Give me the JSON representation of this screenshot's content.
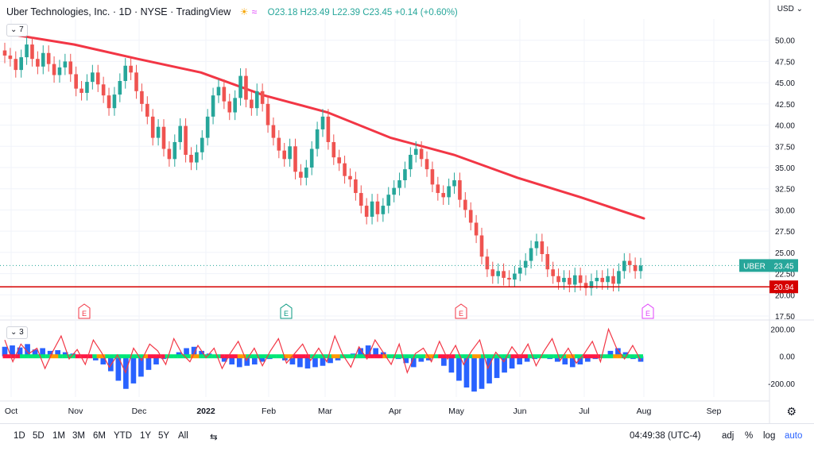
{
  "header": {
    "title": "Uber Technologies, Inc. · 1D · NYSE · TradingView",
    "ohlc": "O23.18 H23.49 L22.39 C23.45 +0.14 (+0.60%)",
    "currency": "USD",
    "ma_tag": "7",
    "osc_tag": "3"
  },
  "toolbar": {
    "timeframes": [
      "1D",
      "5D",
      "1M",
      "3M",
      "6M",
      "YTD",
      "1Y",
      "5Y",
      "All"
    ],
    "time": "04:49:38 (UTC-4)",
    "adj": "adj",
    "pct": "%",
    "log": "log",
    "auto": "auto"
  },
  "colors": {
    "up": "#26a69a",
    "down": "#ef5350",
    "ma": "#f23645",
    "support": "#d50000",
    "osc_bar": "#2962ff",
    "osc_line": "#f23645"
  },
  "chart_data": [
    {
      "type": "candlestick",
      "ticker": "UBER",
      "xlabels": [
        "Oct",
        "Nov",
        "Dec",
        "2022",
        "Feb",
        "Mar",
        "Apr",
        "May",
        "Jun",
        "Jul",
        "Aug",
        "Sep"
      ],
      "ylim": [
        17.5,
        52.5
      ],
      "yticks": [
        17.5,
        20,
        22.5,
        25,
        27.5,
        30,
        32.5,
        35,
        37.5,
        40,
        42.5,
        45,
        47.5,
        50
      ],
      "last_price": 23.45,
      "last_label": "UBER",
      "support_line": 20.94,
      "moving_average": {
        "x_months": [
          "Oct",
          "Nov",
          "Dec",
          "2022",
          "Feb",
          "Mar",
          "Apr",
          "May",
          "Jun",
          "Jul",
          "Aug"
        ],
        "values": [
          50.7,
          49.5,
          47.8,
          46.2,
          43.5,
          41.5,
          38.5,
          36.5,
          33.8,
          31.5,
          29.0
        ]
      },
      "closes": [
        48.2,
        47.8,
        46.5,
        48.0,
        49.5,
        47.8,
        46.9,
        48.5,
        47.2,
        45.9,
        46.8,
        47.5,
        46.0,
        44.3,
        43.8,
        45.1,
        46.2,
        44.8,
        43.5,
        42.0,
        43.6,
        45.2,
        47.0,
        46.2,
        44.0,
        42.5,
        41.0,
        38.5,
        39.8,
        37.2,
        36.0,
        38.0,
        39.9,
        36.5,
        35.6,
        36.8,
        38.5,
        41.0,
        43.5,
        44.5,
        42.8,
        41.5,
        43.2,
        45.8,
        43.0,
        42.0,
        44.0,
        42.5,
        40.0,
        38.5,
        37.0,
        36.0,
        37.5,
        34.5,
        33.8,
        35.0,
        37.2,
        39.5,
        41.0,
        38.0,
        36.2,
        35.5,
        34.0,
        33.6,
        32.0,
        30.5,
        29.2,
        31.0,
        29.5,
        30.5,
        31.8,
        32.6,
        33.5,
        34.8,
        36.5,
        37.2,
        36.0,
        34.8,
        33.0,
        32.0,
        31.5,
        32.8,
        33.5,
        31.2,
        30.0,
        28.5,
        27.0,
        24.5,
        23.0,
        22.2,
        22.8,
        22.0,
        21.8,
        22.5,
        23.2,
        24.0,
        25.5,
        26.3,
        24.8,
        23.0,
        22.2,
        21.5,
        22.0,
        21.2,
        22.3,
        21.4,
        20.8,
        21.6,
        22.0,
        21.5,
        22.2,
        21.3,
        22.8,
        24.0,
        23.5,
        22.8,
        23.45
      ],
      "earnings_markers": [
        "Nov",
        "Feb",
        "May",
        "Aug"
      ]
    },
    {
      "type": "oscillator",
      "ylim": [
        -300,
        250
      ],
      "yticks": [
        200,
        0,
        -200
      ],
      "histogram": [
        70,
        80,
        65,
        90,
        50,
        60,
        40,
        45,
        30,
        20,
        10,
        -5,
        -30,
        -60,
        -110,
        -180,
        -240,
        -200,
        -150,
        -100,
        -60,
        -20,
        10,
        30,
        60,
        70,
        40,
        20,
        -10,
        -40,
        -60,
        -80,
        -70,
        -60,
        -40,
        -20,
        -5,
        -30,
        -60,
        -80,
        -90,
        -80,
        -70,
        -50,
        -30,
        -10,
        20,
        60,
        80,
        60,
        30,
        10,
        -20,
        -50,
        -80,
        -40,
        -30,
        -10,
        -70,
        -120,
        -180,
        -230,
        -260,
        -240,
        -200,
        -160,
        -120,
        -90,
        -60,
        -40,
        -20,
        -10,
        -20,
        -40,
        -60,
        -80,
        -60,
        -40,
        -20,
        10,
        40,
        60,
        30,
        -20,
        -40
      ],
      "signal": [
        120,
        -40,
        90,
        20,
        60,
        -90,
        40,
        150,
        -20,
        50,
        -60,
        120,
        30,
        -80,
        10,
        -120,
        60,
        -30,
        90,
        40,
        -60,
        130,
        20,
        -40,
        80,
        -10,
        60,
        -90,
        20,
        110,
        -30,
        60,
        -70,
        40,
        130,
        -50,
        20,
        90,
        -30,
        60,
        -40,
        150,
        10,
        -80,
        70,
        -20,
        120,
        30,
        -60,
        90,
        -120,
        20,
        60,
        -40,
        110,
        -20,
        80,
        -60,
        40,
        120,
        -90,
        30,
        -40,
        70,
        -10,
        90,
        -70,
        40,
        130,
        -30,
        60,
        -50,
        20,
        110,
        -40,
        200,
        60,
        -20,
        80,
        -30
      ]
    }
  ]
}
